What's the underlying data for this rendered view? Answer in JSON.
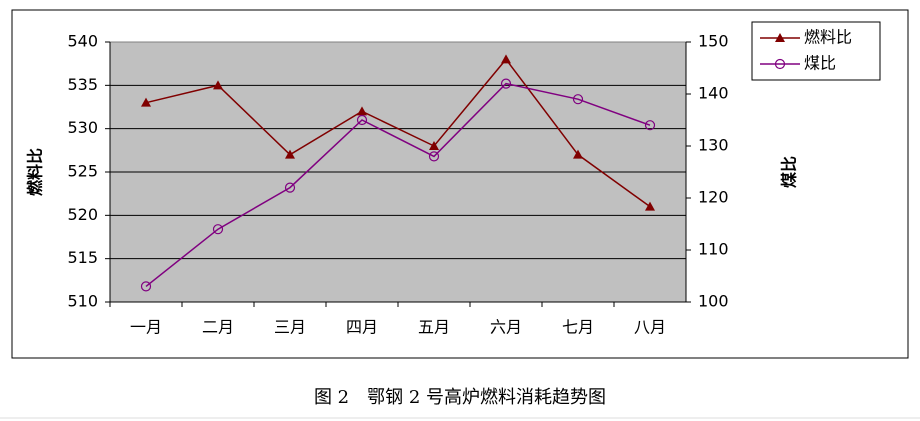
{
  "chart_data": {
    "type": "line",
    "categories": [
      "一月",
      "二月",
      "三月",
      "四月",
      "五月",
      "六月",
      "七月",
      "八月"
    ],
    "ylabel": "燃料比",
    "y2label": "煤比",
    "ylim": [
      510,
      540
    ],
    "yticks": [
      510,
      515,
      520,
      525,
      530,
      535,
      540
    ],
    "y2lim": [
      100,
      150
    ],
    "y2ticks": [
      100,
      110,
      120,
      130,
      140,
      150
    ],
    "grid": true,
    "legend": "upper right",
    "series": [
      {
        "name": "燃料比",
        "color": "#800000",
        "marker": "triangle",
        "values": [
          533,
          535,
          527,
          532,
          528,
          538,
          527,
          521
        ]
      },
      {
        "name": "煤比",
        "color": "#800080",
        "marker": "circle",
        "axis": "y2",
        "values": [
          103,
          114,
          122,
          135,
          128,
          142,
          139,
          134
        ]
      }
    ]
  },
  "caption": "图 2　鄂钢 2 号高炉燃料消耗趋势图"
}
